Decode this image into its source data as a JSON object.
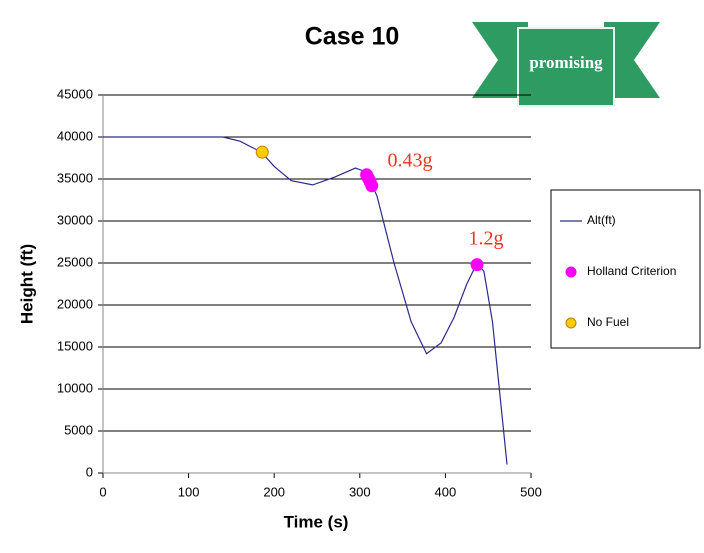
{
  "chart_data": {
    "type": "line",
    "title": "Case 10",
    "xlabel": "Time (s)",
    "ylabel": "Height (ft)",
    "badge": "promising",
    "annotations": [
      "0.43g",
      "1.2g"
    ],
    "xlim": [
      0,
      500
    ],
    "ylim": [
      0,
      45000
    ],
    "xticks": [
      0,
      100,
      200,
      300,
      400,
      500
    ],
    "yticks": [
      0,
      5000,
      10000,
      15000,
      20000,
      25000,
      30000,
      35000,
      40000,
      45000
    ],
    "grid": true,
    "legend": "right",
    "series": [
      {
        "name": "Alt(ft)",
        "type": "line",
        "color": "#2b2b8c",
        "x": [
          0,
          140,
          160,
          185,
          200,
          220,
          245,
          270,
          295,
          303,
          310,
          320,
          340,
          360,
          378,
          395,
          410,
          425,
          437,
          445,
          455,
          465,
          472
        ],
        "values": [
          40000,
          40000,
          39500,
          38200,
          36500,
          34800,
          34300,
          35200,
          36300,
          36000,
          35200,
          33000,
          25000,
          18000,
          14200,
          15500,
          18500,
          22500,
          25000,
          24000,
          18000,
          8000,
          1000
        ]
      },
      {
        "name": "Holland Criterion",
        "type": "scatter",
        "color": "#ff00ff",
        "x": [
          308,
          310,
          312,
          314,
          437
        ],
        "values": [
          35500,
          35100,
          34700,
          34200,
          24800
        ]
      },
      {
        "name": "No Fuel",
        "type": "scatter",
        "color": "#ffcc00",
        "x": [
          186
        ],
        "values": [
          38200
        ]
      }
    ]
  }
}
